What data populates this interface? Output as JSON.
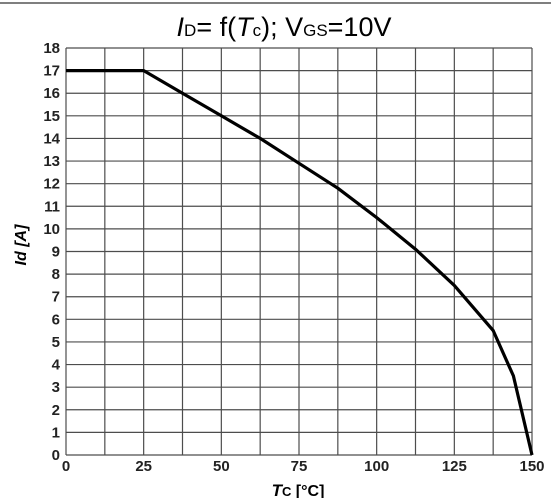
{
  "chart_data": {
    "type": "line",
    "title": {
      "main": "I",
      "main_sub": "D",
      "mid": "= f(",
      "arg": "T",
      "arg_sub": "c",
      "tail": "); V",
      "tail_sub": "GS",
      "end": "=10V"
    },
    "xlabel": {
      "main": "T",
      "sub": "C",
      "unit": " [°C]"
    },
    "ylabel": "Id [A]",
    "xlim": [
      0,
      150
    ],
    "ylim": [
      0,
      18
    ],
    "x_ticks": [
      "0",
      "25",
      "50",
      "75",
      "100",
      "125",
      "150"
    ],
    "y_ticks": [
      "0",
      "1",
      "2",
      "3",
      "4",
      "5",
      "6",
      "7",
      "8",
      "9",
      "10",
      "11",
      "12",
      "13",
      "14",
      "15",
      "16",
      "17",
      "18"
    ],
    "grid": true,
    "series": [
      {
        "x": [
          0,
          25,
          37.5,
          50,
          62.5,
          75,
          87.5,
          100,
          112.5,
          125,
          137.5,
          144,
          150
        ],
        "y": [
          17,
          17,
          16.0,
          15.0,
          14.0,
          12.9,
          11.8,
          10.5,
          9.1,
          7.5,
          5.5,
          3.5,
          0
        ]
      }
    ]
  }
}
